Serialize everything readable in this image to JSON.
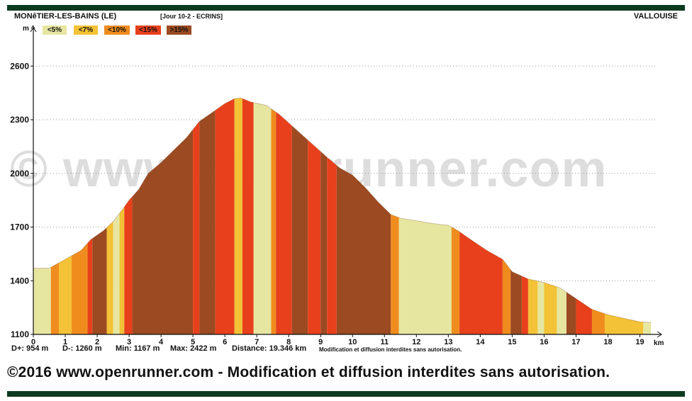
{
  "header": {
    "start": "MONêTIER-LES-BAINS (LE)",
    "stage": "[Jour 10-2 - ECRINS]",
    "end": "VALLOUISE"
  },
  "legend": [
    {
      "label": "<5%",
      "color": "#e6e6a0"
    },
    {
      "label": "<7%",
      "color": "#f3c236"
    },
    {
      "label": "<10%",
      "color": "#f08c1e"
    },
    {
      "label": "<15%",
      "color": "#e8401c"
    },
    {
      "label": ">15%",
      "color": "#9c4a22"
    }
  ],
  "stats": {
    "dplus": "D+: 954 m",
    "dminus": "D-: 1260 m",
    "min": "Min: 1167 m",
    "max": "Max: 2422 m",
    "distance": "Distance: 19.346 km",
    "notice": "Modification et diffusion interdites sans autorisation."
  },
  "footer": "©2016 www.openrunner.com - Modification et diffusion interdites sans autorisation.",
  "watermark": "© www.openrunner.com",
  "chart_data": {
    "type": "area",
    "xlabel": "km",
    "ylabel": "m ^",
    "xlim": [
      0,
      19.5
    ],
    "ylim": [
      1100,
      2700
    ],
    "x_ticks": [
      0,
      1,
      2,
      3,
      4,
      5,
      6,
      7,
      8,
      9,
      10,
      11,
      12,
      13,
      14,
      15,
      16,
      17,
      18,
      19
    ],
    "y_ticks": [
      1100,
      1400,
      1700,
      2000,
      2300,
      2600
    ],
    "grid": true,
    "x": [
      0,
      0.5,
      1,
      1.5,
      1.8,
      2.2,
      2.5,
      2.8,
      3,
      3.3,
      3.6,
      4,
      4.4,
      4.8,
      5.2,
      5.6,
      6,
      6.3,
      6.5,
      6.8,
      7.3,
      7.7,
      8.2,
      8.7,
      9.2,
      9.6,
      10,
      10.4,
      10.8,
      11.2,
      11.5,
      12,
      12.5,
      13,
      13.3,
      13.7,
      14.2,
      14.7,
      15,
      15.5,
      16,
      16.5,
      17,
      17.5,
      18,
      18.5,
      19,
      19.35
    ],
    "elevation": [
      1470,
      1470,
      1520,
      1570,
      1630,
      1680,
      1730,
      1800,
      1850,
      1910,
      2000,
      2060,
      2130,
      2200,
      2290,
      2340,
      2390,
      2418,
      2422,
      2400,
      2380,
      2330,
      2250,
      2170,
      2090,
      2030,
      1990,
      1920,
      1840,
      1770,
      1750,
      1735,
      1720,
      1710,
      1680,
      1630,
      1570,
      1520,
      1450,
      1410,
      1390,
      1360,
      1300,
      1240,
      1210,
      1190,
      1170,
      1167
    ],
    "gradient_bands": [
      {
        "from": 0,
        "to": 0.55,
        "class": "<5%"
      },
      {
        "from": 0.55,
        "to": 0.8,
        "class": "<10%"
      },
      {
        "from": 0.8,
        "to": 1.2,
        "class": "<7%"
      },
      {
        "from": 1.2,
        "to": 1.7,
        "class": "<10%"
      },
      {
        "from": 1.7,
        "to": 1.85,
        "class": "<15%"
      },
      {
        "from": 1.85,
        "to": 2.3,
        "class": ">15%"
      },
      {
        "from": 2.3,
        "to": 2.5,
        "class": "<7%"
      },
      {
        "from": 2.5,
        "to": 2.7,
        "class": "<5%"
      },
      {
        "from": 2.7,
        "to": 2.85,
        "class": "<7%"
      },
      {
        "from": 2.85,
        "to": 3.1,
        "class": "<15%"
      },
      {
        "from": 3.1,
        "to": 5.0,
        "class": ">15%"
      },
      {
        "from": 5.0,
        "to": 5.2,
        "class": "<15%"
      },
      {
        "from": 5.2,
        "to": 5.7,
        "class": ">15%"
      },
      {
        "from": 5.7,
        "to": 6.3,
        "class": "<15%"
      },
      {
        "from": 6.3,
        "to": 6.55,
        "class": "<7%"
      },
      {
        "from": 6.55,
        "to": 6.9,
        "class": "<15%"
      },
      {
        "from": 6.9,
        "to": 7.45,
        "class": "<5%"
      },
      {
        "from": 7.45,
        "to": 7.6,
        "class": "<10%"
      },
      {
        "from": 7.6,
        "to": 8.1,
        "class": "<15%"
      },
      {
        "from": 8.1,
        "to": 8.6,
        "class": ">15%"
      },
      {
        "from": 8.6,
        "to": 9.0,
        "class": "<15%"
      },
      {
        "from": 9.0,
        "to": 9.2,
        "class": ">15%"
      },
      {
        "from": 9.2,
        "to": 9.5,
        "class": "<15%"
      },
      {
        "from": 9.5,
        "to": 11.2,
        "class": ">15%"
      },
      {
        "from": 11.2,
        "to": 11.45,
        "class": "<10%"
      },
      {
        "from": 11.45,
        "to": 13.1,
        "class": "<5%"
      },
      {
        "from": 13.1,
        "to": 13.35,
        "class": "<10%"
      },
      {
        "from": 13.35,
        "to": 14.7,
        "class": "<15%"
      },
      {
        "from": 14.7,
        "to": 14.95,
        "class": "<10%"
      },
      {
        "from": 14.95,
        "to": 15.3,
        "class": ">15%"
      },
      {
        "from": 15.3,
        "to": 15.5,
        "class": "<15%"
      },
      {
        "from": 15.5,
        "to": 15.8,
        "class": "<7%"
      },
      {
        "from": 15.8,
        "to": 16.0,
        "class": "<5%"
      },
      {
        "from": 16.0,
        "to": 16.4,
        "class": "<7%"
      },
      {
        "from": 16.4,
        "to": 16.7,
        "class": "<5%"
      },
      {
        "from": 16.7,
        "to": 17.0,
        "class": ">15%"
      },
      {
        "from": 17.0,
        "to": 17.5,
        "class": "<15%"
      },
      {
        "from": 17.5,
        "to": 17.9,
        "class": "<10%"
      },
      {
        "from": 17.9,
        "to": 19.1,
        "class": "<7%"
      },
      {
        "from": 19.1,
        "to": 19.35,
        "class": "<5%"
      }
    ]
  }
}
